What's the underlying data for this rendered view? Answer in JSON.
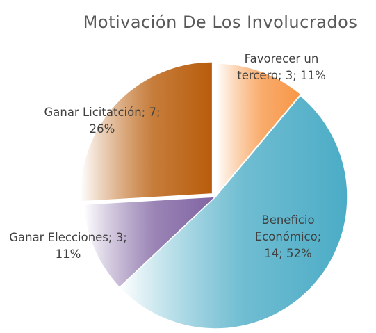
{
  "chart_data": {
    "type": "pie",
    "title": "Motivación De Los Involucrados",
    "values": [
      3,
      14,
      3,
      7
    ],
    "value_labels": [
      "Favorecer un tercero; 3; 11%",
      "Beneficio Económico; 14; 52%",
      "Ganar Elecciones; 3; 11%",
      "Ganar Licitatción; 7; 26%"
    ],
    "colors": [
      "#f79646",
      "#4bacc6",
      "#8064a2",
      "#b85c0a"
    ]
  }
}
